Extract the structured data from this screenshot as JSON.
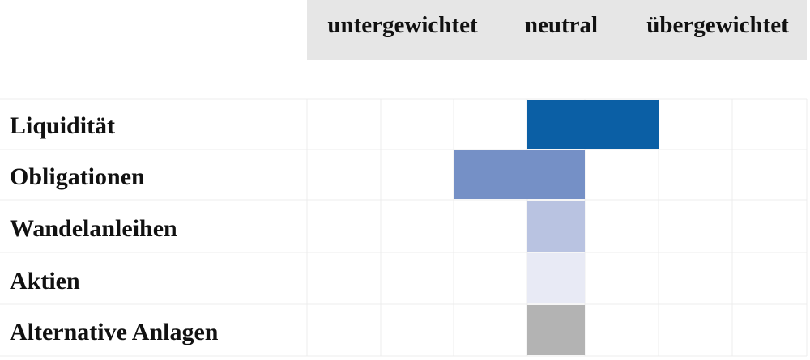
{
  "chart_data": {
    "type": "bar",
    "header": {
      "labels": [
        "untergewichtet",
        "neutral",
        "übergewichtet"
      ]
    },
    "categories": [
      "Liquidität",
      "Obligationen",
      "Wandelanleihen",
      "Aktien",
      "Alternative Anlagen"
    ],
    "rows": [
      {
        "label": "Liquidität",
        "from": 0,
        "to": 1,
        "color": "#0b5fa5"
      },
      {
        "label": "Obligationen",
        "from": -1,
        "to": 0,
        "color": "#7590c6"
      },
      {
        "label": "Wandelanleihen",
        "from": 0,
        "to": 0,
        "color": "#b9c3e1"
      },
      {
        "label": "Aktien",
        "from": 0,
        "to": 0,
        "color": "#e8eaf5"
      },
      {
        "label": "Alternative Anlagen",
        "from": 0,
        "to": 0,
        "color": "#b3b3b3"
      }
    ],
    "scale": {
      "min": -2,
      "max": 2,
      "step": 1,
      "neutral": 0
    },
    "colors": {
      "header_background": "#e6e6e6",
      "grid": "#ececec"
    }
  }
}
